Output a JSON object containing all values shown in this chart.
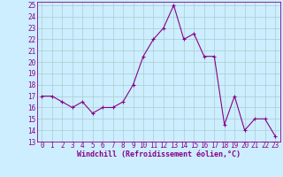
{
  "x": [
    0,
    1,
    2,
    3,
    4,
    5,
    6,
    7,
    8,
    9,
    10,
    11,
    12,
    13,
    14,
    15,
    16,
    17,
    18,
    19,
    20,
    21,
    22,
    23
  ],
  "y": [
    17.0,
    17.0,
    16.5,
    16.0,
    16.5,
    15.5,
    16.0,
    16.0,
    16.5,
    18.0,
    20.5,
    22.0,
    23.0,
    25.0,
    22.0,
    22.5,
    20.5,
    20.5,
    14.5,
    17.0,
    14.0,
    15.0,
    15.0,
    13.5
  ],
  "line_color": "#880088",
  "marker": "+",
  "marker_size": 3,
  "line_width": 0.8,
  "bg_color": "#cceeff",
  "grid_color": "#aacccc",
  "xlabel": "Windchill (Refroidissement éolien,°C)",
  "xlabel_fontsize": 6.0,
  "tick_fontsize": 5.5,
  "ylim": [
    13,
    25
  ],
  "xlim": [
    -0.5,
    23.5
  ],
  "yticks": [
    13,
    14,
    15,
    16,
    17,
    18,
    19,
    20,
    21,
    22,
    23,
    24,
    25
  ],
  "xticks": [
    0,
    1,
    2,
    3,
    4,
    5,
    6,
    7,
    8,
    9,
    10,
    11,
    12,
    13,
    14,
    15,
    16,
    17,
    18,
    19,
    20,
    21,
    22,
    23
  ]
}
